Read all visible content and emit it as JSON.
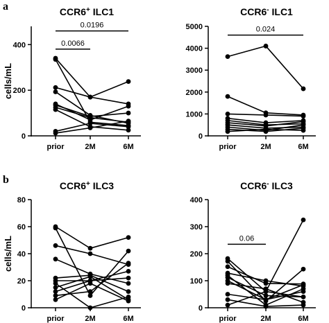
{
  "panel_letters": [
    "a",
    "b"
  ],
  "chart_data": [
    {
      "type": "line",
      "title_base": "CCR6",
      "title_sup": "+",
      "title_rest": " ILC1",
      "ylabel": "cells/mL",
      "categories": [
        "prior",
        "2M",
        "6M"
      ],
      "ylim": [
        0,
        480
      ],
      "yticks": [
        "0",
        "200",
        "400"
      ],
      "ytick_values": [
        0,
        200,
        400
      ],
      "grid": false,
      "subjects": [
        [
          340,
          170,
          140
        ],
        [
          335,
          60,
          45
        ],
        [
          212,
          170,
          238
        ],
        [
          193,
          90,
          55
        ],
        [
          140,
          70,
          130
        ],
        [
          135,
          85,
          100
        ],
        [
          125,
          80,
          60
        ],
        [
          115,
          40,
          25
        ],
        [
          20,
          55,
          40
        ],
        [
          12,
          35,
          65
        ]
      ],
      "comparisons": [
        {
          "from": "prior",
          "to": "6M",
          "label": "0.0196",
          "y": 460
        },
        {
          "from": "prior",
          "to": "2M",
          "label": "0.0066",
          "y": 380
        }
      ]
    },
    {
      "type": "line",
      "title_base": "CCR6",
      "title_sup": "-",
      "title_rest": " ILC1",
      "ylabel": "",
      "categories": [
        "prior",
        "2M",
        "6M"
      ],
      "ylim": [
        0,
        5000
      ],
      "yticks": [
        "0",
        "1000",
        "2000",
        "3000",
        "4000",
        "5000"
      ],
      "ytick_values": [
        0,
        1000,
        2000,
        3000,
        4000,
        5000
      ],
      "grid": false,
      "subjects": [
        [
          3620,
          4100,
          2150
        ],
        [
          1800,
          1050,
          950
        ],
        [
          1000,
          950,
          900
        ],
        [
          800,
          600,
          700
        ],
        [
          700,
          500,
          550
        ],
        [
          600,
          450,
          650
        ],
        [
          500,
          350,
          400
        ],
        [
          400,
          250,
          500
        ],
        [
          300,
          200,
          350
        ],
        [
          200,
          300,
          250
        ]
      ],
      "comparisons": [
        {
          "from": "prior",
          "to": "6M",
          "label": "0.024",
          "y": 4600
        }
      ]
    },
    {
      "type": "line",
      "title_base": "CCR6",
      "title_sup": "+",
      "title_rest": " ILC3",
      "ylabel": "cells/mL",
      "categories": [
        "prior",
        "2M",
        "6M"
      ],
      "ylim": [
        0,
        80
      ],
      "yticks": [
        "0",
        "20",
        "40",
        "60",
        "80"
      ],
      "ytick_values": [
        0,
        20,
        40,
        60,
        80
      ],
      "grid": false,
      "subjects": [
        [
          60,
          44,
          52
        ],
        [
          59,
          9,
          42
        ],
        [
          46,
          40,
          32
        ],
        [
          36,
          25,
          18
        ],
        [
          22,
          24,
          12
        ],
        [
          20,
          20,
          27
        ],
        [
          18,
          0,
          8
        ],
        [
          15,
          23,
          6
        ],
        [
          12,
          20,
          22
        ],
        [
          9,
          12,
          33
        ],
        [
          6,
          18,
          5
        ]
      ],
      "comparisons": []
    },
    {
      "type": "line",
      "title_base": "CCR6",
      "title_sup": "-",
      "title_rest": " ILC3",
      "ylabel": "",
      "categories": [
        "prior",
        "2M",
        "6M"
      ],
      "ylim": [
        0,
        400
      ],
      "yticks": [
        "0",
        "100",
        "200",
        "300",
        "400"
      ],
      "ytick_values": [
        0,
        100,
        200,
        300,
        400
      ],
      "grid": false,
      "subjects": [
        [
          182,
          60,
          325
        ],
        [
          172,
          25,
          143
        ],
        [
          152,
          90,
          88
        ],
        [
          128,
          100,
          80
        ],
        [
          120,
          10,
          70
        ],
        [
          112,
          45,
          40
        ],
        [
          100,
          30,
          60
        ],
        [
          90,
          70,
          20
        ],
        [
          50,
          30,
          85
        ],
        [
          30,
          5,
          10
        ],
        [
          10,
          60,
          40
        ]
      ],
      "comparisons": [
        {
          "from": "prior",
          "to": "2M",
          "label": "0.06",
          "y": 235
        }
      ]
    }
  ]
}
